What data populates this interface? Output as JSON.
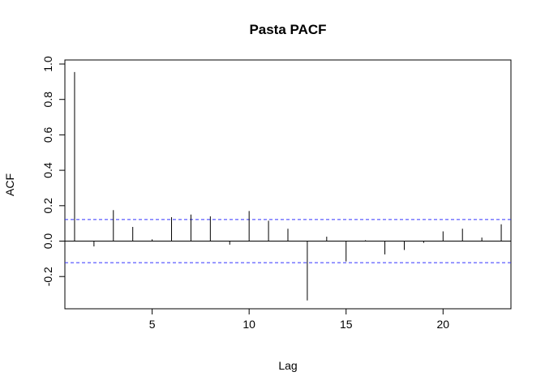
{
  "chart_data": {
    "type": "bar",
    "title": "Pasta PACF",
    "xlabel": "Lag",
    "ylabel": "ACF",
    "xlim": [
      0.5,
      23.5
    ],
    "ylim": [
      -0.38,
      1.0
    ],
    "xticks": [
      5,
      10,
      15,
      20
    ],
    "xtick_labels": [
      "5",
      "10",
      "15",
      "20"
    ],
    "yticks": [
      -0.2,
      0.0,
      0.2,
      0.4,
      0.6,
      0.8,
      1.0
    ],
    "ytick_labels": [
      "-0.2",
      "0.0",
      "0.2",
      "0.4",
      "0.6",
      "0.8",
      "1.0"
    ],
    "confidence_bound": 0.122,
    "confidence_color": "#3333ff",
    "bar_color": "#000000",
    "zero_line": true,
    "grid": false,
    "x": [
      1,
      2,
      3,
      4,
      5,
      6,
      7,
      8,
      9,
      10,
      11,
      12,
      13,
      14,
      15,
      16,
      17,
      18,
      19,
      20,
      21,
      22,
      23
    ],
    "values": [
      0.955,
      -0.03,
      0.175,
      0.08,
      0.01,
      0.135,
      0.15,
      0.14,
      -0.02,
      0.17,
      0.115,
      0.07,
      -0.335,
      0.025,
      -0.115,
      0.005,
      -0.075,
      -0.05,
      -0.01,
      0.055,
      0.07,
      0.02,
      0.095
    ]
  }
}
